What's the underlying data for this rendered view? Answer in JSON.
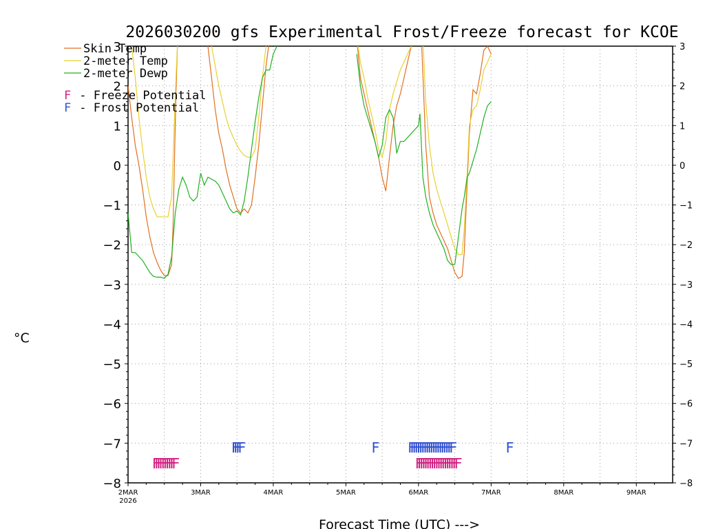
{
  "chart_data": {
    "type": "line",
    "title": "2026030200 gfs Experimental Frost/Freeze forecast for KCOE",
    "ylabel": "°C",
    "xlabel": "Forecast Time (UTC) --->",
    "ylim": [
      -8,
      3
    ],
    "xlim": [
      0,
      7.5
    ],
    "yticks": [
      -8,
      -7,
      -6,
      -5,
      -4,
      -3,
      -2,
      -1,
      0,
      1,
      2,
      3
    ],
    "ytick_labels": [
      "−8",
      "−7",
      "−6",
      "−5",
      "−4",
      "−3",
      "−2",
      "−1",
      "0",
      "1",
      "2",
      "3"
    ],
    "xticks": [
      {
        "day": 0,
        "label": "2MAR",
        "sublabel": "2026"
      },
      {
        "day": 1,
        "label": "3MAR"
      },
      {
        "day": 2,
        "label": "4MAR"
      },
      {
        "day": 3,
        "label": "5MAR"
      },
      {
        "day": 4,
        "label": "6MAR"
      },
      {
        "day": 5,
        "label": "7MAR"
      },
      {
        "day": 6,
        "label": "8MAR"
      },
      {
        "day": 7,
        "label": "9MAR"
      }
    ],
    "legend": {
      "placement": "top-left",
      "lines": [
        {
          "label": "Skin Temp",
          "color": "#e07020"
        },
        {
          "label": "2-meter Temp",
          "color": "#e8d030"
        },
        {
          "label": "2-meter Dewp",
          "color": "#20b020"
        }
      ],
      "markers": [
        {
          "glyph": "F",
          "label": " - Freeze Potential",
          "color": "#d02080"
        },
        {
          "glyph": "F",
          "label": " - Frost Potential",
          "color": "#3050d0"
        }
      ]
    },
    "series": [
      {
        "name": "Skin Temp",
        "color": "#e07020",
        "x": [
          0.0,
          0.05,
          0.1,
          0.15,
          0.2,
          0.25,
          0.3,
          0.35,
          0.4,
          0.45,
          0.5,
          0.55,
          0.6,
          0.62,
          0.64,
          0.66,
          0.68,
          0.7,
          0.72,
          null,
          1.05,
          1.1,
          1.15,
          1.2,
          1.25,
          1.3,
          1.35,
          1.4,
          1.45,
          1.5,
          1.55,
          1.6,
          1.65,
          1.7,
          1.75,
          1.8,
          1.85,
          1.9,
          1.95,
          null,
          3.15,
          3.2,
          3.25,
          3.3,
          3.35,
          3.4,
          3.45,
          3.5,
          3.55,
          3.6,
          3.65,
          3.7,
          3.75,
          3.8,
          3.85,
          3.9,
          3.95,
          null,
          4.04,
          4.06,
          4.1,
          4.15,
          4.2,
          4.25,
          4.3,
          4.35,
          4.4,
          4.45,
          4.5,
          4.55,
          4.6,
          4.63,
          4.67,
          4.7,
          4.75,
          4.8,
          4.85,
          4.9,
          4.95,
          5.0
        ],
        "y": [
          2.0,
          1.2,
          0.5,
          0.0,
          -0.6,
          -1.3,
          -1.8,
          -2.2,
          -2.45,
          -2.65,
          -2.78,
          -2.78,
          -2.5,
          -1.5,
          0.2,
          1.8,
          3.0,
          3.2,
          3.2,
          null,
          3.2,
          3.0,
          2.2,
          1.4,
          0.8,
          0.4,
          -0.1,
          -0.5,
          -0.8,
          -1.1,
          -1.2,
          -1.1,
          -1.2,
          -1.0,
          -0.3,
          0.5,
          1.5,
          2.5,
          3.2,
          null,
          3.2,
          2.2,
          1.8,
          1.4,
          1.0,
          0.6,
          0.2,
          -0.3,
          -0.65,
          0.2,
          1.0,
          1.5,
          1.8,
          2.2,
          2.6,
          3.0,
          3.2,
          null,
          3.2,
          2.3,
          0.5,
          -0.8,
          -1.2,
          -1.5,
          -1.7,
          -1.9,
          -2.1,
          -2.4,
          -2.7,
          -2.85,
          -2.8,
          -2.2,
          -0.5,
          0.8,
          1.9,
          1.8,
          2.3,
          2.9,
          3.0,
          2.8
        ]
      },
      {
        "name": "2-meter Temp",
        "color": "#e8d030",
        "x": [
          0.0,
          0.05,
          0.1,
          0.15,
          0.2,
          0.25,
          0.3,
          0.35,
          0.4,
          0.45,
          0.5,
          0.55,
          0.6,
          0.62,
          0.64,
          0.66,
          0.68,
          0.7,
          null,
          1.05,
          1.1,
          1.15,
          1.2,
          1.25,
          1.3,
          1.35,
          1.4,
          1.45,
          1.5,
          1.55,
          1.6,
          1.65,
          1.7,
          1.75,
          1.8,
          1.85,
          1.9,
          1.95,
          null,
          3.15,
          3.2,
          3.25,
          3.3,
          3.35,
          3.4,
          3.45,
          3.5,
          3.55,
          3.6,
          3.65,
          3.7,
          3.75,
          3.8,
          3.85,
          3.9,
          3.95,
          null,
          4.06,
          4.1,
          4.15,
          4.2,
          4.25,
          4.3,
          4.35,
          4.4,
          4.45,
          4.5,
          4.55,
          4.6,
          4.63,
          4.67,
          4.7,
          4.75,
          4.8,
          4.85,
          4.9,
          4.95,
          5.0
        ],
        "y": [
          3.2,
          3.0,
          2.2,
          1.2,
          0.4,
          -0.3,
          -0.8,
          -1.1,
          -1.3,
          -1.3,
          -1.3,
          -1.3,
          -0.8,
          0.2,
          1.2,
          2.2,
          3.0,
          3.2,
          null,
          3.2,
          3.2,
          3.0,
          2.5,
          2.0,
          1.6,
          1.2,
          0.9,
          0.7,
          0.5,
          0.35,
          0.25,
          0.2,
          0.2,
          0.4,
          1.2,
          2.2,
          3.0,
          3.2,
          null,
          3.2,
          2.6,
          2.2,
          1.7,
          1.3,
          0.9,
          0.4,
          0.2,
          0.6,
          1.4,
          1.8,
          2.1,
          2.4,
          2.6,
          2.8,
          3.0,
          3.2,
          null,
          3.2,
          1.6,
          0.5,
          -0.2,
          -0.6,
          -0.9,
          -1.2,
          -1.5,
          -1.8,
          -2.1,
          -2.25,
          -2.25,
          -1.6,
          -0.2,
          1.0,
          1.4,
          1.5,
          1.9,
          2.4,
          2.6,
          2.8
        ]
      },
      {
        "name": "2-meter Dewp",
        "color": "#20b020",
        "x": [
          0.0,
          0.05,
          0.1,
          0.15,
          0.2,
          0.25,
          0.3,
          0.35,
          0.4,
          0.45,
          0.5,
          0.55,
          0.6,
          0.65,
          0.7,
          0.75,
          0.8,
          0.85,
          0.9,
          0.95,
          1.0,
          1.05,
          1.1,
          1.15,
          1.2,
          1.25,
          1.3,
          1.35,
          1.4,
          1.45,
          1.5,
          1.55,
          1.6,
          1.65,
          1.7,
          1.75,
          1.8,
          1.85,
          1.9,
          1.95,
          2.0,
          2.05,
          2.1,
          2.15,
          2.2,
          2.25,
          null,
          3.15,
          3.2,
          3.25,
          3.3,
          3.35,
          3.4,
          3.45,
          3.5,
          3.55,
          3.6,
          3.65,
          3.7,
          3.75,
          3.8,
          3.85,
          3.9,
          3.95,
          4.0,
          4.02,
          4.06,
          4.1,
          4.15,
          4.2,
          4.25,
          4.3,
          4.35,
          4.4,
          4.45,
          4.5,
          4.55,
          4.6,
          4.63,
          4.67,
          4.7,
          4.75,
          4.8,
          4.85,
          4.9,
          4.95,
          5.0
        ],
        "y": [
          -1.2,
          -2.2,
          -2.2,
          -2.3,
          -2.4,
          -2.55,
          -2.7,
          -2.8,
          -2.82,
          -2.82,
          -2.85,
          -2.75,
          -2.3,
          -1.2,
          -0.6,
          -0.3,
          -0.5,
          -0.8,
          -0.9,
          -0.8,
          -0.2,
          -0.5,
          -0.3,
          -0.35,
          -0.4,
          -0.5,
          -0.7,
          -0.9,
          -1.1,
          -1.2,
          -1.15,
          -1.25,
          -0.9,
          -0.3,
          0.4,
          1.1,
          1.7,
          2.2,
          2.4,
          2.4,
          2.8,
          3.0,
          3.1,
          3.2,
          3.2,
          3.2,
          null,
          2.8,
          2.0,
          1.5,
          1.2,
          0.9,
          0.6,
          0.2,
          0.5,
          1.2,
          1.4,
          1.2,
          0.3,
          0.6,
          0.6,
          0.7,
          0.8,
          0.9,
          1.0,
          1.3,
          -0.3,
          -0.8,
          -1.2,
          -1.5,
          -1.7,
          -1.9,
          -2.1,
          -2.4,
          -2.5,
          -2.5,
          -1.8,
          -1.1,
          -0.8,
          -0.3,
          -0.2,
          0.1,
          0.4,
          0.8,
          1.2,
          1.5,
          1.6
        ]
      }
    ],
    "markers": {
      "freeze": {
        "color": "#d02080",
        "y": -7.5,
        "x": [
          0.33,
          0.36,
          0.39,
          0.42,
          0.45,
          0.48,
          0.51,
          0.54,
          0.57,
          0.6,
          3.95,
          3.98,
          4.01,
          4.04,
          4.07,
          4.1,
          4.13,
          4.16,
          4.19,
          4.22,
          4.25,
          4.28,
          4.31,
          4.34,
          4.37,
          4.4,
          4.43,
          4.46,
          4.49
        ]
      },
      "frost": {
        "color": "#3050d0",
        "y": -7.1,
        "x": [
          1.42,
          1.45,
          1.48,
          1.51,
          3.35,
          3.85,
          3.88,
          3.91,
          3.94,
          3.97,
          4.0,
          4.03,
          4.06,
          4.09,
          4.12,
          4.15,
          4.18,
          4.21,
          4.24,
          4.27,
          4.3,
          4.33,
          4.36,
          4.39,
          4.42,
          5.2
        ]
      }
    }
  }
}
